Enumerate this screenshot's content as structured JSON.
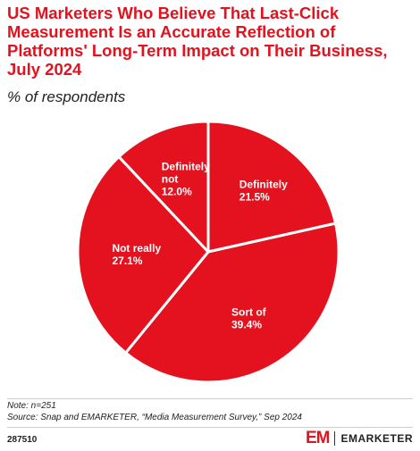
{
  "header": {
    "title": "US Marketers Who Believe That Last-Click Measurement Is an Accurate Reflection of Platforms' Long-Term Impact on Their Business, July 2024",
    "subtitle": "% of respondents"
  },
  "chart_data": {
    "type": "pie",
    "title": "US Marketers Who Believe That Last-Click Measurement Is an Accurate Reflection of Platforms' Long-Term Impact on Their Business, July 2024",
    "subtitle": "% of respondents",
    "unit": "%",
    "categories": [
      "Definitely",
      "Sort of",
      "Not really",
      "Definitely not"
    ],
    "values": [
      21.5,
      39.4,
      27.1,
      12.0
    ],
    "value_labels": [
      "21.5%",
      "39.4%",
      "27.1%",
      "12.0%"
    ],
    "slice_color": "#e3121e",
    "separator_color": "#ffffff"
  },
  "footer": {
    "note": "Note: n=251",
    "source": "Source: Snap and EMARKETER, “Media Measurement Survey,” Sep 2024",
    "chart_id": "287510",
    "brand_mark": "EM",
    "brand_name": "EMARKETER"
  },
  "colors": {
    "accent": "#e3121e",
    "text": "#222222"
  }
}
